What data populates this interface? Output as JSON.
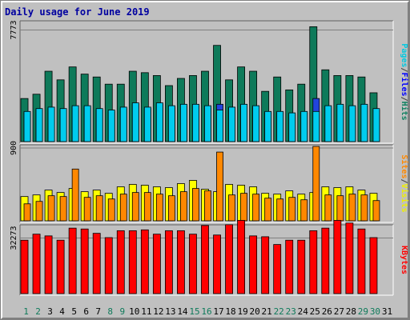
{
  "chart_data": {
    "type": "bar",
    "title": "Daily usage for June 2019",
    "days": [
      "1",
      "2",
      "3",
      "4",
      "5",
      "6",
      "7",
      "8",
      "9",
      "10",
      "11",
      "12",
      "13",
      "14",
      "15",
      "16",
      "17",
      "18",
      "19",
      "20",
      "21",
      "22",
      "23",
      "24",
      "25",
      "26",
      "27",
      "28",
      "29",
      "30",
      "31"
    ],
    "weekend_days": [
      "1",
      "2",
      "8",
      "9",
      "15",
      "16",
      "22",
      "23",
      "29",
      "30"
    ],
    "panels": [
      {
        "id": "hits",
        "tick_label": "7773",
        "tick_value": 7773,
        "ymax": 8300,
        "right_labels": [
          {
            "text": "Pages",
            "color": "#00c8e0"
          },
          {
            "text": "/",
            "color": "#404040"
          },
          {
            "text": "Files",
            "color": "#0000ff"
          },
          {
            "text": "/",
            "color": "#404040"
          },
          {
            "text": "Hits",
            "color": "#0e8060"
          }
        ],
        "series": [
          {
            "key": "hits",
            "color": "#0e7a5a",
            "offset": 0,
            "values": [
              3000,
              3300,
              4900,
              4300,
              5200,
              4700,
              4500,
              4000,
              4000,
              4900,
              4800,
              4600,
              3900,
              4400,
              4600,
              4900,
              6700,
              4300,
              5200,
              4900,
              3500,
              4500,
              3600,
              4000,
              8000,
              5000,
              4600,
              4600,
              4500,
              3400,
              0
            ]
          },
          {
            "key": "files",
            "color": "#2244dd",
            "offset": 1,
            "values": [
              2000,
              2200,
              2300,
              2200,
              2400,
              2400,
              2200,
              2100,
              2300,
              2600,
              2300,
              2600,
              2400,
              2500,
              2500,
              2400,
              2600,
              2300,
              2500,
              2400,
              2000,
              2000,
              1900,
              2000,
              3000,
              2400,
              2500,
              2400,
              2500,
              2200,
              0
            ]
          },
          {
            "key": "pages",
            "color": "#00ccee",
            "offset": 1,
            "values": [
              2100,
              2300,
              2400,
              2300,
              2500,
              2500,
              2300,
              2200,
              2400,
              2700,
              2400,
              2700,
              2500,
              2600,
              2600,
              2500,
              2200,
              2400,
              2600,
              2500,
              2100,
              2100,
              2000,
              2100,
              2100,
              2500,
              2600,
              2500,
              2600,
              2300,
              0
            ]
          }
        ]
      },
      {
        "id": "visits",
        "tick_label": "900",
        "tick_value": 900,
        "ymax": 920,
        "right_labels": [
          {
            "text": "Sites",
            "color": "#ff8800"
          },
          {
            "text": "/",
            "color": "#404040"
          },
          {
            "text": "Visits",
            "color": "#eeee00"
          }
        ],
        "series": [
          {
            "key": "visits",
            "color": "#ffff00",
            "offset": 0,
            "values": [
              300,
              320,
              380,
              350,
              400,
              360,
              380,
              340,
              420,
              450,
              440,
              420,
              410,
              460,
              500,
              390,
              360,
              450,
              440,
              420,
              340,
              330,
              370,
              330,
              350,
              420,
              410,
              420,
              380,
              340,
              0
            ]
          },
          {
            "key": "sites",
            "color": "#ff8800",
            "offset": 1,
            "values": [
              210,
              240,
              310,
              300,
              640,
              290,
              310,
              270,
              330,
              350,
              350,
              330,
              310,
              360,
              400,
              370,
              850,
              320,
              340,
              330,
              280,
              270,
              290,
              260,
              920,
              320,
              310,
              330,
              320,
              250,
              0
            ]
          }
        ]
      },
      {
        "id": "kbytes",
        "tick_label": "32273",
        "tick_value": 32273,
        "ymax": 39000,
        "right_labels": [
          {
            "text": "KBytes",
            "color": "#ff0000"
          }
        ],
        "series": [
          {
            "key": "kbytes",
            "color": "#ff0000",
            "offset": 0,
            "values": [
              31000,
              34500,
              33500,
              31000,
              38000,
              37500,
              35000,
              32500,
              36500,
              36500,
              37000,
              34500,
              36500,
              36500,
              34500,
              39500,
              34000,
              40000,
              42500,
              33500,
              33000,
              28500,
              31000,
              31000,
              36500,
              38000,
              42500,
              41000,
              37500,
              32500,
              0
            ]
          }
        ]
      }
    ]
  }
}
